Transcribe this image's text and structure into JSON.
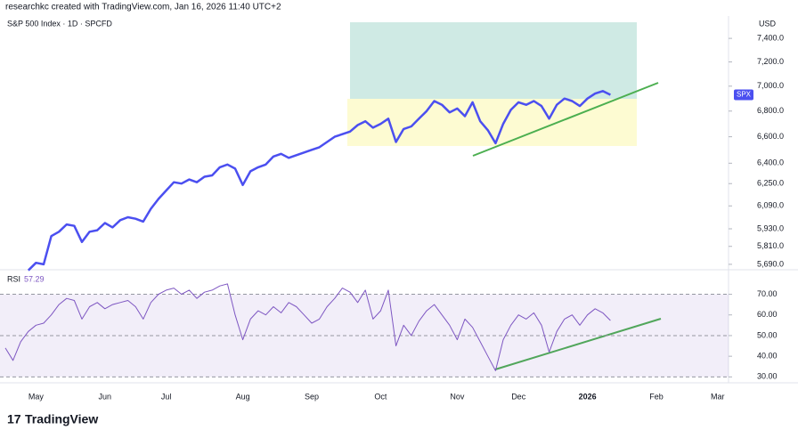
{
  "header": "researchkc created with TradingView.com, Jan 16, 2026 11:40 UTC+2",
  "logo": "TradingView",
  "chart_data": [
    {
      "type": "line",
      "title": "S&P 500 Index · 1D · SPCFD",
      "currency": "USD",
      "log_scale": true,
      "categories": [
        null,
        null,
        null,
        null,
        "May",
        null,
        null,
        null,
        null,
        null,
        null,
        null,
        null,
        "Jun",
        null,
        null,
        null,
        null,
        null,
        null,
        null,
        "Jul",
        null,
        null,
        null,
        null,
        null,
        null,
        null,
        null,
        null,
        "Aug",
        null,
        null,
        null,
        null,
        null,
        null,
        null,
        null,
        "Sep",
        null,
        null,
        null,
        null,
        null,
        null,
        null,
        null,
        "Oct",
        null,
        null,
        null,
        null,
        null,
        null,
        null,
        null,
        null,
        "Nov",
        null,
        null,
        null,
        null,
        null,
        null,
        null,
        "Dec",
        null,
        null,
        null,
        null,
        null,
        null,
        null,
        null,
        "2026",
        null,
        null,
        null,
        null,
        null,
        null,
        null,
        null,
        "Feb",
        null,
        null,
        null,
        null,
        null,
        null,
        null,
        "Mar",
        null
      ],
      "series": [
        {
          "name": "SPX",
          "color": "#4b4ff0",
          "values": [
            null,
            null,
            null,
            5650,
            5700,
            5690,
            5880,
            5910,
            5960,
            5950,
            5840,
            5910,
            5920,
            5970,
            5940,
            5990,
            6010,
            6000,
            5980,
            6070,
            6140,
            6200,
            6260,
            6250,
            6280,
            6260,
            6300,
            6310,
            6370,
            6390,
            6360,
            6240,
            6340,
            6370,
            6390,
            6450,
            6470,
            6440,
            6460,
            6480,
            6500,
            6520,
            6560,
            6600,
            6620,
            6640,
            6690,
            6720,
            6670,
            6700,
            6740,
            6560,
            6660,
            6680,
            6740,
            6800,
            6880,
            6850,
            6790,
            6820,
            6760,
            6870,
            6720,
            6650,
            6550,
            6700,
            6810,
            6870,
            6850,
            6880,
            6840,
            6740,
            6850,
            6900,
            6880,
            6840,
            6900,
            6940,
            6960,
            6930,
            null,
            null,
            null,
            null,
            null,
            null,
            null,
            null,
            null,
            null,
            null,
            null,
            null,
            null,
            null
          ]
        }
      ],
      "ylim": [
        5660,
        7540
      ],
      "yticks": [
        {
          "value": 5690,
          "label": "5,690.0"
        },
        {
          "value": 5810,
          "label": "5,810.0"
        },
        {
          "value": 5930,
          "label": "5,930.0"
        },
        {
          "value": 6090,
          "label": "6,090.0"
        },
        {
          "value": 6250,
          "label": "6,250.0"
        },
        {
          "value": 6400,
          "label": "6,400.0"
        },
        {
          "value": 6600,
          "label": "6,600.0"
        },
        {
          "value": 6800,
          "label": "6,800.0"
        },
        {
          "value": 7000,
          "label": "7,000.0"
        },
        {
          "value": 7200,
          "label": "7,200.0"
        },
        {
          "value": 7400,
          "label": "7,400.0"
        }
      ]
    },
    {
      "type": "line",
      "title": "RSI",
      "log_scale": false,
      "series": [
        {
          "name": "RSI",
          "color": "#7e57c2",
          "values": [
            44,
            38,
            47,
            52,
            55,
            56,
            60,
            65,
            68,
            67,
            58,
            64,
            66,
            63,
            65,
            66,
            67,
            64,
            58,
            66,
            70,
            72,
            73,
            70,
            72,
            68,
            71,
            72,
            74,
            75,
            60,
            48,
            58,
            62,
            60,
            64,
            61,
            66,
            64,
            60,
            56,
            58,
            64,
            68,
            73,
            71,
            66,
            72,
            58,
            62,
            72,
            45,
            55,
            50,
            57,
            62,
            65,
            60,
            55,
            48,
            58,
            54,
            47,
            40,
            33,
            48,
            55,
            60,
            58,
            61,
            55,
            42,
            52,
            58,
            60,
            55,
            60,
            63,
            61,
            57.29,
            null,
            null,
            null,
            null,
            null,
            null,
            null,
            null,
            null,
            null,
            null,
            null,
            null,
            null,
            null
          ]
        }
      ],
      "ylim": [
        28,
        81
      ],
      "yticks": [
        {
          "value": 30,
          "label": "30.00"
        },
        {
          "value": 40,
          "label": "40.00"
        },
        {
          "value": 50,
          "label": "50.00"
        },
        {
          "value": 60,
          "label": "60.00"
        },
        {
          "value": 70,
          "label": "70.00"
        }
      ]
    }
  ]
}
